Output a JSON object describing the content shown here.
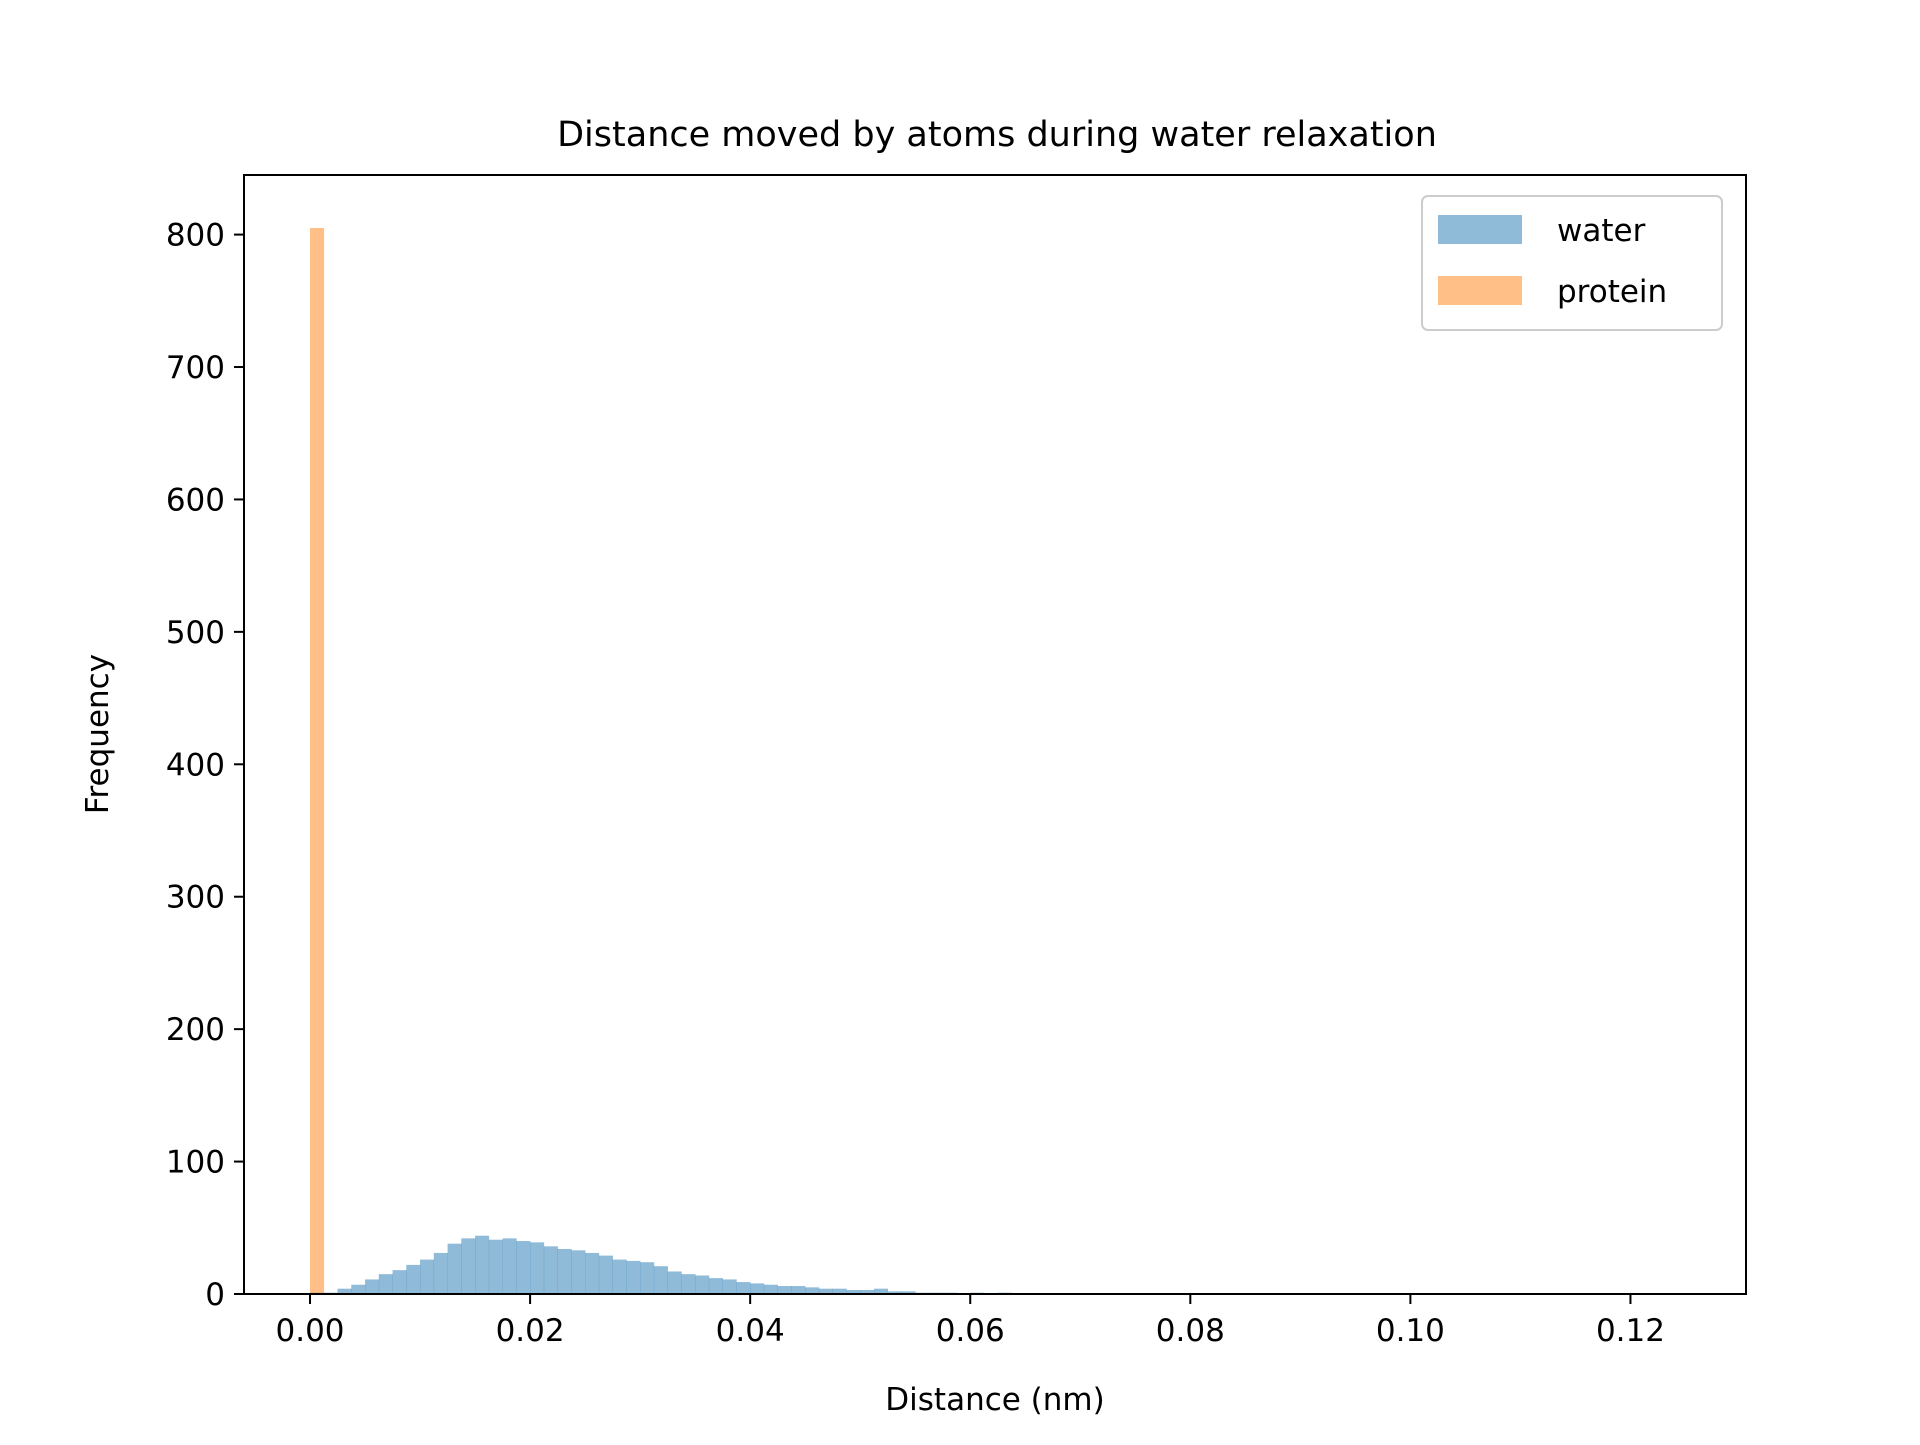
{
  "chart_data": {
    "type": "histogram",
    "title": "Distance moved by atoms during water relaxation",
    "xlabel": "Distance (nm)",
    "ylabel": "Frequency",
    "xlim": [
      -0.006,
      0.1305
    ],
    "ylim": [
      0,
      845
    ],
    "x_ticks": [
      0.0,
      0.02,
      0.04,
      0.06,
      0.08,
      0.1,
      0.12
    ],
    "x_tick_labels": [
      "0.00",
      "0.02",
      "0.04",
      "0.06",
      "0.08",
      "0.10",
      "0.12"
    ],
    "y_ticks": [
      0,
      100,
      200,
      300,
      400,
      500,
      600,
      700,
      800
    ],
    "y_tick_labels": [
      "0",
      "100",
      "200",
      "300",
      "400",
      "500",
      "600",
      "700",
      "800"
    ],
    "grid": false,
    "legend_position": "top-right",
    "series": [
      {
        "name": "water",
        "color": "#1f77b4",
        "alpha": 0.5,
        "bin_start": 0.0,
        "bin_width": 0.00125,
        "counts": [
          1,
          1,
          4,
          7,
          11,
          15,
          18,
          22,
          26,
          31,
          38,
          42,
          44,
          41,
          42,
          40,
          39,
          36,
          34,
          33,
          31,
          29,
          26,
          25,
          24,
          21,
          17,
          15,
          14,
          12,
          11,
          9,
          8,
          7,
          6,
          6,
          5,
          4,
          4,
          3,
          3,
          4,
          2,
          2,
          1,
          1,
          1,
          0,
          1,
          0,
          1
        ]
      },
      {
        "name": "protein",
        "color": "#ff7f0e",
        "alpha": 0.5,
        "bin_start": 0.0,
        "bin_width": 0.00125,
        "counts": [
          805
        ]
      }
    ]
  }
}
